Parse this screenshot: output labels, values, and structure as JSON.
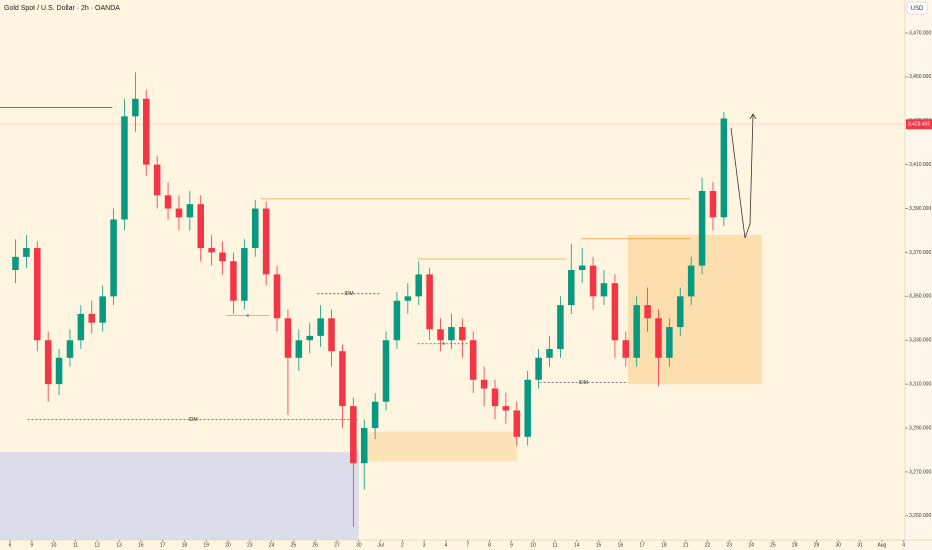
{
  "chart_data": {
    "type": "candlestick",
    "title": "Gold Spot / U.S. Dollar · 2h · OANDA",
    "currency": "USD",
    "up_color": "#089981",
    "down_color": "#f23645",
    "x": [
      0.25,
      0.75,
      1.25,
      1.75,
      2.25,
      2.75,
      3.25,
      3.75,
      4.25,
      4.75,
      5.25,
      5.75,
      6.25,
      6.75,
      7.25,
      7.75,
      8.25,
      8.75,
      9.25,
      9.75,
      10.25,
      10.75,
      11.25,
      11.75,
      12.25,
      12.75,
      13.25,
      13.75,
      14.25,
      14.75,
      15.25,
      15.75,
      16.25,
      16.75,
      17.25,
      17.75,
      18.25,
      18.75,
      19.25,
      19.75,
      20.25,
      20.75,
      21.25,
      21.75,
      22.25,
      22.75,
      23.25,
      23.75,
      24.25,
      24.75,
      25.25,
      25.75,
      26.25,
      26.75,
      27.25,
      27.75,
      28.25,
      28.75,
      29.25,
      29.75,
      30.25,
      30.75,
      31.25,
      31.75,
      32.25,
      32.75
    ],
    "open": [
      3362,
      3368,
      3372,
      3330,
      3310,
      3322,
      3330,
      3342,
      3338,
      3350,
      3385,
      3432,
      3440,
      3410,
      3396,
      3390,
      3386,
      3392,
      3372,
      3370,
      3366,
      3348,
      3372,
      3390,
      3360,
      3340,
      3322,
      3330,
      3332,
      3340,
      3325,
      3300,
      3274,
      3290,
      3302,
      3330,
      3348,
      3350,
      3360,
      3335,
      3330,
      3336,
      3330,
      3312,
      3308,
      3300,
      3298,
      3286,
      3312,
      3322,
      3326,
      3346,
      3362,
      3364,
      3350,
      3356,
      3330,
      3322,
      3346,
      3340,
      3322,
      3336,
      3350,
      3364,
      3398,
      3386
    ],
    "high": [
      3376,
      3378,
      3375,
      3334,
      3326,
      3335,
      3346,
      3348,
      3355,
      3390,
      3440,
      3452,
      3444,
      3414,
      3402,
      3396,
      3398,
      3396,
      3378,
      3375,
      3370,
      3376,
      3394,
      3393,
      3364,
      3344,
      3335,
      3338,
      3346,
      3344,
      3328,
      3304,
      3294,
      3306,
      3334,
      3352,
      3356,
      3366,
      3363,
      3340,
      3342,
      3340,
      3334,
      3318,
      3312,
      3306,
      3302,
      3316,
      3326,
      3332,
      3350,
      3374,
      3372,
      3368,
      3362,
      3360,
      3334,
      3350,
      3354,
      3344,
      3340,
      3354,
      3368,
      3404,
      3402,
      3434
    ],
    "low": [
      3356,
      3363,
      3325,
      3302,
      3305,
      3318,
      3326,
      3333,
      3334,
      3346,
      3380,
      3425,
      3405,
      3390,
      3385,
      3380,
      3380,
      3366,
      3364,
      3360,
      3342,
      3344,
      3368,
      3355,
      3334,
      3296,
      3316,
      3324,
      3327,
      3318,
      3290,
      3245,
      3262,
      3285,
      3298,
      3326,
      3342,
      3346,
      3330,
      3325,
      3326,
      3322,
      3306,
      3300,
      3294,
      3292,
      3282,
      3282,
      3308,
      3318,
      3322,
      3342,
      3356,
      3344,
      3346,
      3322,
      3318,
      3318,
      3334,
      3309,
      3318,
      3332,
      3346,
      3360,
      3380,
      3382
    ],
    "close": [
      3368,
      3372,
      3330,
      3310,
      3322,
      3330,
      3342,
      3338,
      3350,
      3385,
      3432,
      3440,
      3410,
      3396,
      3390,
      3386,
      3392,
      3372,
      3370,
      3366,
      3348,
      3372,
      3390,
      3360,
      3340,
      3322,
      3330,
      3332,
      3340,
      3325,
      3300,
      3274,
      3290,
      3302,
      3330,
      3348,
      3350,
      3360,
      3335,
      3330,
      3336,
      3330,
      3312,
      3308,
      3300,
      3298,
      3286,
      3312,
      3322,
      3326,
      3346,
      3362,
      3364,
      3350,
      3356,
      3330,
      3322,
      3346,
      3340,
      3322,
      3336,
      3350,
      3364,
      3398,
      3386,
      3431
    ],
    "xlim": [
      -0.46,
      41.06
    ],
    "ylim": [
      3239,
      3485
    ],
    "xticks": [
      {
        "value": 0,
        "label": "6"
      },
      {
        "value": 1,
        "label": "9"
      },
      {
        "value": 2,
        "label": "10"
      },
      {
        "value": 3,
        "label": "11"
      },
      {
        "value": 4,
        "label": "12"
      },
      {
        "value": 5,
        "label": "13"
      },
      {
        "value": 6,
        "label": "16"
      },
      {
        "value": 7,
        "label": "17"
      },
      {
        "value": 8,
        "label": "18"
      },
      {
        "value": 9,
        "label": "19"
      },
      {
        "value": 10,
        "label": "20"
      },
      {
        "value": 11,
        "label": "23"
      },
      {
        "value": 12,
        "label": "24"
      },
      {
        "value": 13,
        "label": "25"
      },
      {
        "value": 14,
        "label": "26"
      },
      {
        "value": 15,
        "label": "27"
      },
      {
        "value": 16,
        "label": "30"
      },
      {
        "value": 17,
        "label": "Jul"
      },
      {
        "value": 18,
        "label": "2"
      },
      {
        "value": 19,
        "label": "3"
      },
      {
        "value": 20,
        "label": "4"
      },
      {
        "value": 21,
        "label": "7"
      },
      {
        "value": 22,
        "label": "8"
      },
      {
        "value": 23,
        "label": "9"
      },
      {
        "value": 24,
        "label": "10"
      },
      {
        "value": 25,
        "label": "11"
      },
      {
        "value": 26,
        "label": "14"
      },
      {
        "value": 27,
        "label": "15"
      },
      {
        "value": 28,
        "label": "16"
      },
      {
        "value": 29,
        "label": "17"
      },
      {
        "value": 30,
        "label": "18"
      },
      {
        "value": 31,
        "label": "21"
      },
      {
        "value": 32,
        "label": "22"
      },
      {
        "value": 33,
        "label": "23"
      },
      {
        "value": 34,
        "label": "24"
      },
      {
        "value": 35,
        "label": "25"
      },
      {
        "value": 36,
        "label": "28"
      },
      {
        "value": 37,
        "label": "29"
      },
      {
        "value": 38,
        "label": "30"
      },
      {
        "value": 39,
        "label": "31"
      },
      {
        "value": 40,
        "label": "Aug"
      },
      {
        "value": 41,
        "label": "4"
      }
    ],
    "yticks": [
      {
        "value": 3250,
        "label": "3,250.000"
      },
      {
        "value": 3270,
        "label": "3,270.000"
      },
      {
        "value": 3290,
        "label": "3,290.000"
      },
      {
        "value": 3310,
        "label": "3,310.000"
      },
      {
        "value": 3330,
        "label": "3,330.000"
      },
      {
        "value": 3350,
        "label": "3,350.000"
      },
      {
        "value": 3370,
        "label": "3,370.000"
      },
      {
        "value": 3390,
        "label": "3,390.000"
      },
      {
        "value": 3410,
        "label": "3,410.000"
      },
      {
        "value": 3430,
        "label": "3,430.000"
      },
      {
        "value": 3450,
        "label": "3,450.000"
      },
      {
        "value": 3470,
        "label": "3,470.000"
      }
    ],
    "last_price": {
      "value": 3428.405,
      "label": "3,428.405"
    },
    "zones": [
      {
        "color": "#d5d8ec",
        "x": [
          -0.46,
          16.0
        ],
        "y": [
          3239,
          3279
        ]
      },
      {
        "color": "#fde0b0",
        "x": [
          16.2,
          23.26
        ],
        "y": [
          3274.8,
          3288.4
        ]
      },
      {
        "color": "#fdd9a6",
        "x": [
          28.35,
          34.5
        ],
        "y": [
          3310,
          3378
        ]
      }
    ],
    "levels": [
      {
        "color": "#2962ff",
        "style": "solid",
        "y": 3436,
        "x": [
          -0.46,
          4.7
        ]
      },
      {
        "color": "#555555",
        "style": "dotted",
        "y": 3293.9,
        "x": [
          0.8,
          16.0
        ],
        "label": "IDM"
      },
      {
        "color": "#555555",
        "style": "dotted",
        "y": 3351.2,
        "x": [
          14.1,
          17.0
        ],
        "label": "IDM"
      },
      {
        "color": "#e6a23c",
        "style": "solid",
        "y": 3341.2,
        "x": [
          9.9,
          11.9
        ],
        "label": "x"
      },
      {
        "color": "#555555",
        "style": "dotted",
        "y": 3328.4,
        "x": [
          18.7,
          21.1
        ],
        "label": "x"
      },
      {
        "color": "#e6a23c",
        "style": "solid",
        "y": 3367,
        "x": [
          18.7,
          25.5
        ]
      },
      {
        "color": "#e6a23c",
        "style": "solid",
        "y": 3394.4,
        "x": [
          11.5,
          31.2
        ]
      },
      {
        "color": "#e6a23c",
        "style": "solid",
        "y": 3376.2,
        "x": [
          26.2,
          31.2
        ]
      },
      {
        "color": "#555555",
        "style": "dotted",
        "y": 3310.7,
        "x": [
          24.3,
          28.3
        ],
        "label": "IDM"
      }
    ]
  }
}
